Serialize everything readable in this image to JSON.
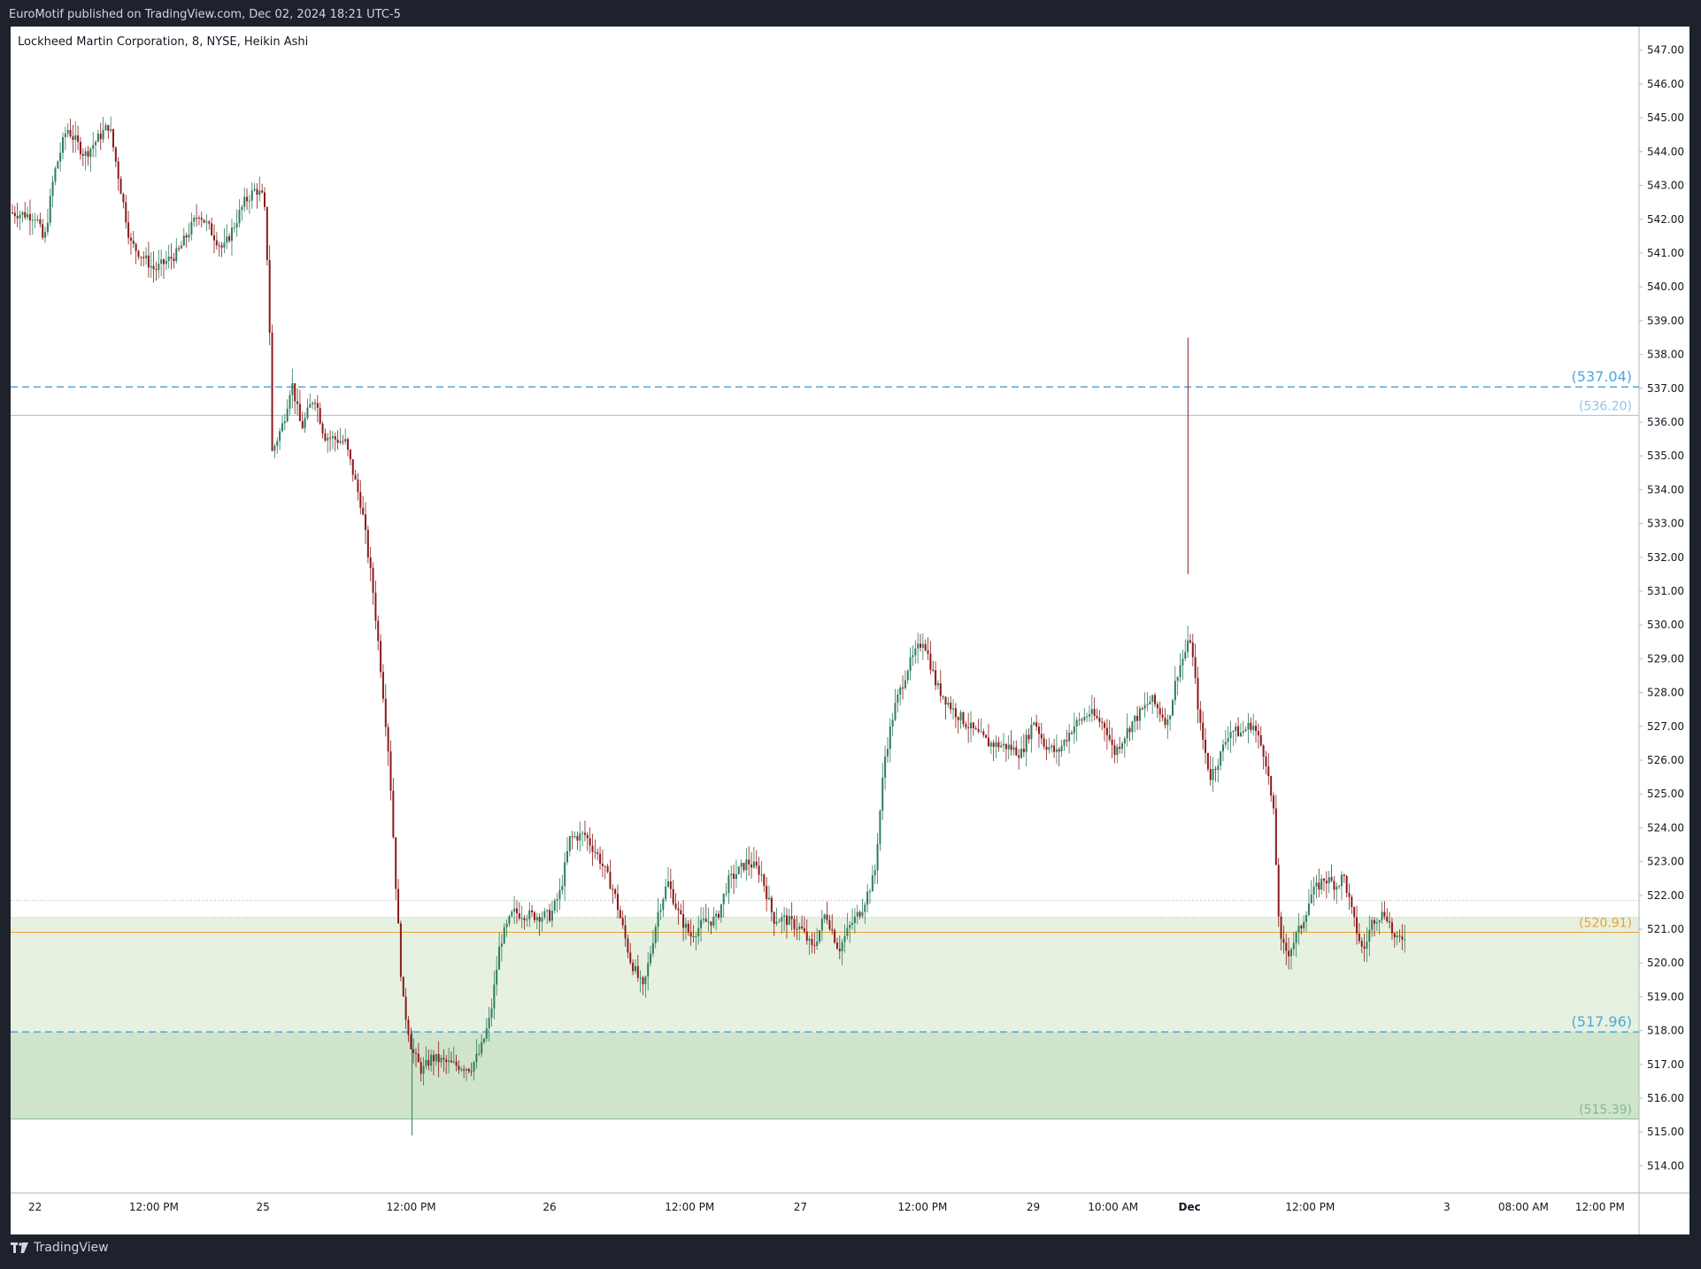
{
  "header": {
    "published_text": "EuroMotif published on TradingView.com, Dec 02, 2024 18:21 UTC-5"
  },
  "footer": {
    "brand": "TradingView",
    "logo_icon": "tradingview-logo-icon"
  },
  "colors": {
    "up": "#2e7d5b",
    "down": "#8b1a1a",
    "blue_level": "#4fa6e0",
    "light_blue_level": "#8fc6ea",
    "orange_level": "#f0a030",
    "zone_light": "#e6f1e1",
    "zone_dark": "#cfe4ca",
    "zone_line": "#7fb89a"
  },
  "chart_data": {
    "type": "candlestick",
    "title": "Lockheed Martin Corporation, 8, NYSE, Heikin Ashi",
    "ylim": [
      513.2,
      547.7
    ],
    "y_ticks": [
      "514.00",
      "515.00",
      "516.00",
      "517.00",
      "518.00",
      "519.00",
      "520.00",
      "521.00",
      "522.00",
      "523.00",
      "524.00",
      "525.00",
      "526.00",
      "527.00",
      "528.00",
      "529.00",
      "530.00",
      "531.00",
      "532.00",
      "533.00",
      "534.00",
      "535.00",
      "536.00",
      "537.00",
      "538.00",
      "539.00",
      "540.00",
      "541.00",
      "542.00",
      "543.00",
      "544.00",
      "545.00",
      "546.00",
      "547.00"
    ],
    "x_ticks": [
      {
        "label": "22",
        "frac": 0.015
      },
      {
        "label": "12:00 PM",
        "frac": 0.088
      },
      {
        "label": "25",
        "frac": 0.155
      },
      {
        "label": "12:00 PM",
        "frac": 0.246
      },
      {
        "label": "26",
        "frac": 0.331
      },
      {
        "label": "12:00 PM",
        "frac": 0.417
      },
      {
        "label": "27",
        "frac": 0.485
      },
      {
        "label": "12:00 PM",
        "frac": 0.56
      },
      {
        "label": "29",
        "frac": 0.628
      },
      {
        "label": "10:00 AM",
        "frac": 0.677
      },
      {
        "label": "Dec",
        "frac": 0.724
      },
      {
        "label": "12:00 PM",
        "frac": 0.798
      },
      {
        "label": "3",
        "frac": 0.882
      },
      {
        "label": "08:00 AM",
        "frac": 0.929
      },
      {
        "label": "12:00 PM",
        "frac": 0.976
      }
    ],
    "levels": [
      {
        "value": 537.04,
        "label": "(537.04)",
        "style": "dashed",
        "color": "#4fa6e0",
        "size": "large"
      },
      {
        "value": 536.2,
        "label": "(536.20)",
        "style": "solid",
        "color": "#8fc6ea",
        "size": "small"
      },
      {
        "value": 520.91,
        "label": "(520.91)",
        "style": "solid",
        "color": "#f0a030",
        "size": "small"
      },
      {
        "value": 517.96,
        "label": "(517.96)",
        "style": "dashed",
        "color": "#4fa6e0",
        "size": "large"
      },
      {
        "value": 515.39,
        "label": "(515.39)",
        "style": "solid",
        "color": "#7fb89a",
        "size": "small"
      }
    ],
    "zones": [
      {
        "from": 517.96,
        "to": 521.35,
        "color": "#e6f1e1"
      },
      {
        "from": 515.39,
        "to": 517.96,
        "color": "#cfe4ca"
      }
    ],
    "dotted_lines": [
      521.85,
      521.35
    ],
    "price_path": [
      [
        0.0,
        542.2
      ],
      [
        0.015,
        542.1
      ],
      [
        0.02,
        541.3
      ],
      [
        0.026,
        543.3
      ],
      [
        0.034,
        544.7
      ],
      [
        0.045,
        543.9
      ],
      [
        0.06,
        544.8
      ],
      [
        0.073,
        541.3
      ],
      [
        0.088,
        540.5
      ],
      [
        0.102,
        541.0
      ],
      [
        0.115,
        542.2
      ],
      [
        0.13,
        541.1
      ],
      [
        0.143,
        542.5
      ],
      [
        0.15,
        542.9
      ],
      [
        0.155,
        542.6
      ],
      [
        0.158,
        540.0
      ],
      [
        0.16,
        535.1
      ],
      [
        0.167,
        536.0
      ],
      [
        0.172,
        537.2
      ],
      [
        0.178,
        535.8
      ],
      [
        0.186,
        536.8
      ],
      [
        0.192,
        535.6
      ],
      [
        0.205,
        535.4
      ],
      [
        0.215,
        533.5
      ],
      [
        0.222,
        531.0
      ],
      [
        0.227,
        528.6
      ],
      [
        0.232,
        526.0
      ],
      [
        0.236,
        522.3
      ],
      [
        0.24,
        519.0
      ],
      [
        0.246,
        517.4
      ],
      [
        0.252,
        516.8
      ],
      [
        0.258,
        517.2
      ],
      [
        0.27,
        517.0
      ],
      [
        0.282,
        516.9
      ],
      [
        0.288,
        517.4
      ],
      [
        0.294,
        518.4
      ],
      [
        0.3,
        520.6
      ],
      [
        0.308,
        521.5
      ],
      [
        0.32,
        521.4
      ],
      [
        0.331,
        521.4
      ],
      [
        0.337,
        522.1
      ],
      [
        0.343,
        523.7
      ],
      [
        0.352,
        523.8
      ],
      [
        0.361,
        523.1
      ],
      [
        0.37,
        522.1
      ],
      [
        0.38,
        520.1
      ],
      [
        0.388,
        519.2
      ],
      [
        0.397,
        521.5
      ],
      [
        0.403,
        522.4
      ],
      [
        0.41,
        521.4
      ],
      [
        0.417,
        520.8
      ],
      [
        0.425,
        521.2
      ],
      [
        0.433,
        521.3
      ],
      [
        0.44,
        522.4
      ],
      [
        0.452,
        523.0
      ],
      [
        0.46,
        522.7
      ],
      [
        0.468,
        521.3
      ],
      [
        0.475,
        521.3
      ],
      [
        0.485,
        521.0
      ],
      [
        0.492,
        520.4
      ],
      [
        0.5,
        521.5
      ],
      [
        0.508,
        520.4
      ],
      [
        0.515,
        521.1
      ],
      [
        0.522,
        521.6
      ],
      [
        0.53,
        522.6
      ],
      [
        0.536,
        526.0
      ],
      [
        0.542,
        527.5
      ],
      [
        0.55,
        528.7
      ],
      [
        0.56,
        529.6
      ],
      [
        0.568,
        528.2
      ],
      [
        0.578,
        527.5
      ],
      [
        0.59,
        526.9
      ],
      [
        0.6,
        526.5
      ],
      [
        0.612,
        526.4
      ],
      [
        0.62,
        526.2
      ],
      [
        0.628,
        527.2
      ],
      [
        0.634,
        526.5
      ],
      [
        0.642,
        526.2
      ],
      [
        0.652,
        527.0
      ],
      [
        0.662,
        527.4
      ],
      [
        0.672,
        527.0
      ],
      [
        0.677,
        526.2
      ],
      [
        0.688,
        527.1
      ],
      [
        0.7,
        527.8
      ],
      [
        0.71,
        527.1
      ],
      [
        0.716,
        528.6
      ],
      [
        0.724,
        529.6
      ],
      [
        0.73,
        527.0
      ],
      [
        0.736,
        525.5
      ],
      [
        0.742,
        526.1
      ],
      [
        0.748,
        526.9
      ],
      [
        0.755,
        526.8
      ],
      [
        0.762,
        527.1
      ],
      [
        0.77,
        526.1
      ],
      [
        0.775,
        524.4
      ],
      [
        0.779,
        520.6
      ],
      [
        0.784,
        520.3
      ],
      [
        0.792,
        521.1
      ],
      [
        0.798,
        522.0
      ],
      [
        0.806,
        522.5
      ],
      [
        0.814,
        522.3
      ],
      [
        0.818,
        522.6
      ],
      [
        0.824,
        521.3
      ],
      [
        0.83,
        520.3
      ],
      [
        0.836,
        521.3
      ],
      [
        0.844,
        521.5
      ],
      [
        0.85,
        520.6
      ],
      [
        0.857,
        520.9
      ]
    ]
  }
}
